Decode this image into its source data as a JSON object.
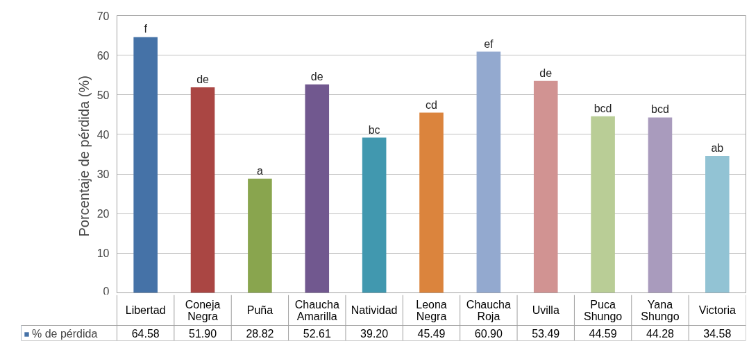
{
  "chart_data": {
    "type": "bar",
    "ylabel": "Porcentaje  de pérdida (%)",
    "categories": [
      "Libertad",
      "Coneja Negra",
      "Puña",
      "Chaucha Amarilla",
      "Natividad",
      "Leona Negra",
      "Chaucha Roja",
      "Uvilla",
      "Puca Shungo",
      "Yana Shungo",
      "Victoria"
    ],
    "series": [
      {
        "name": "% de pérdida",
        "color": "#4572a7",
        "values": [
          64.58,
          51.9,
          28.82,
          52.61,
          39.2,
          45.49,
          60.9,
          53.49,
          44.59,
          44.28,
          34.58
        ],
        "value_labels": [
          "64.58",
          "51.90",
          "28.82",
          "52.61",
          "39.20",
          "45.49",
          "60.90",
          "53.49",
          "44.59",
          "44.28",
          "34.58"
        ],
        "colors": [
          "#4572a7",
          "#aa4643",
          "#89a54e",
          "#71588f",
          "#4198af",
          "#db843d",
          "#93a9cf",
          "#d19392",
          "#b9cd96",
          "#a99bbd",
          "#92c3d4"
        ]
      }
    ],
    "ylim": [
      0,
      70
    ],
    "yticks": [
      0,
      10,
      20,
      30,
      40,
      50,
      60,
      70
    ],
    "legend": "bottom",
    "grid": "y",
    "annotations": [
      "f",
      "de",
      "a",
      "de",
      "bc",
      "cd",
      "ef",
      "de",
      "bcd",
      "bcd",
      "ab"
    ]
  }
}
